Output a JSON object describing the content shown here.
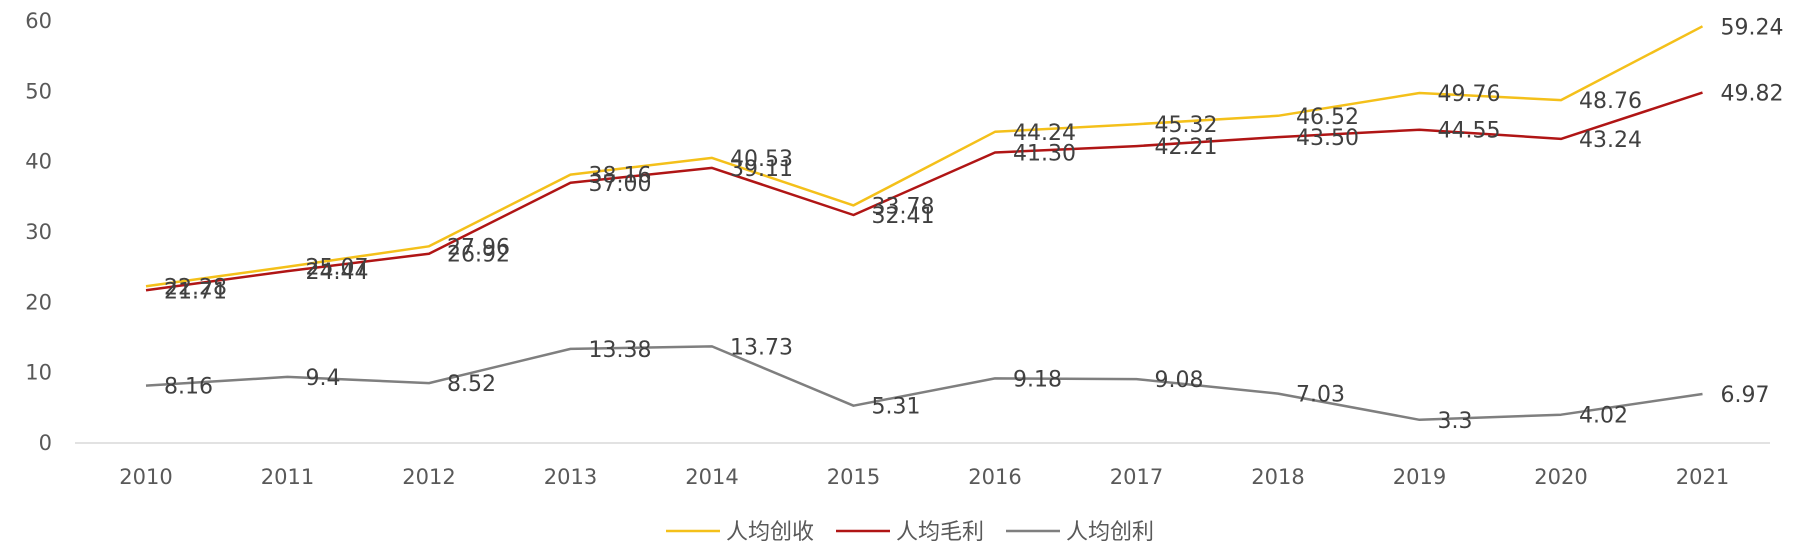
{
  "chart_data": {
    "type": "line",
    "title": "",
    "xlabel": "",
    "ylabel": "",
    "categories": [
      "2010",
      "2011",
      "2012",
      "2013",
      "2014",
      "2015",
      "2016",
      "2017",
      "2018",
      "2019",
      "2020",
      "2021"
    ],
    "ylim": [
      0,
      60
    ],
    "yticks": [
      0,
      10,
      20,
      30,
      40,
      50,
      60
    ],
    "grid": false,
    "legend": "bottom-center",
    "series": [
      {
        "name": "人均创收",
        "color": "#F4C01A",
        "values": [
          22.28,
          25.07,
          27.96,
          38.16,
          40.53,
          33.78,
          44.24,
          45.32,
          46.52,
          49.76,
          48.76,
          59.24
        ],
        "labels": [
          "22.28",
          "25.07",
          "27.96",
          "38.16",
          "40.53",
          "33.78",
          "44.24",
          "45.32",
          "46.52",
          "49.76",
          "48.76",
          "59.24"
        ]
      },
      {
        "name": "人均毛利",
        "color": "#B01515",
        "values": [
          21.71,
          24.44,
          26.92,
          37.0,
          39.11,
          32.41,
          41.3,
          42.21,
          43.5,
          44.55,
          43.24,
          49.82
        ],
        "labels": [
          "21.71",
          "24.44",
          "26.92",
          "37.00",
          "39.11",
          "32.41",
          "41.30",
          "42.21",
          "43.50",
          "44.55",
          "43.24",
          "49.82"
        ]
      },
      {
        "name": "人均创利",
        "color": "#7F7F7F",
        "values": [
          8.16,
          9.4,
          8.52,
          13.38,
          13.73,
          5.31,
          9.18,
          9.08,
          7.03,
          3.3,
          4.02,
          6.97
        ],
        "labels": [
          "8.16",
          "9.4",
          "8.52",
          "13.38",
          "13.73",
          "5.31",
          "9.18",
          "9.08",
          "7.03",
          "3.3",
          "4.02",
          "6.97"
        ]
      }
    ]
  }
}
